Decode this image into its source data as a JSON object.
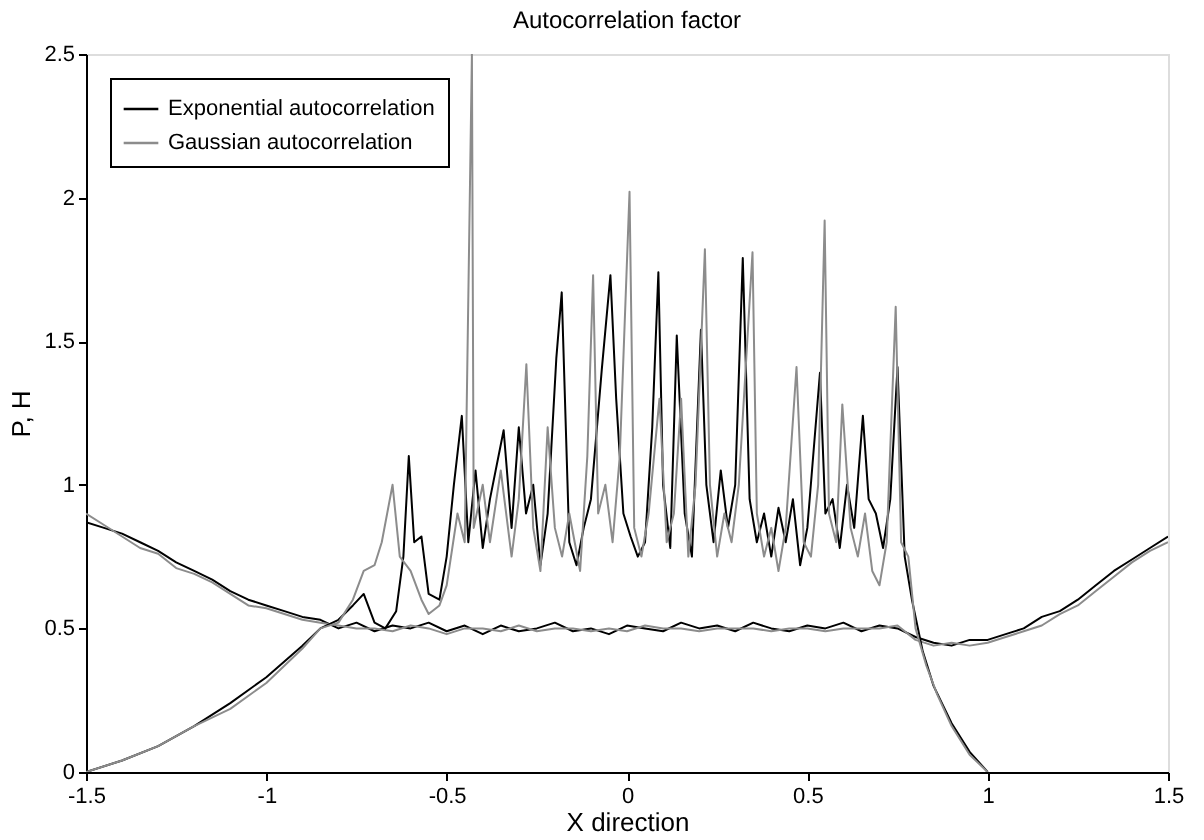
{
  "chart_data": {
    "type": "line",
    "title": "Autocorrelation factor",
    "xlabel": "X direction",
    "ylabel": "P, H",
    "xlim": [
      -1.5,
      1.5
    ],
    "xticks": [
      -1.5,
      -1,
      -0.5,
      0,
      0.5,
      1,
      1.5
    ],
    "ylim": [
      0,
      2.5
    ],
    "yticks": [
      0,
      0.5,
      1,
      1.5,
      2,
      2.5
    ],
    "grid": false,
    "legend": "top left",
    "marker": "none",
    "line_style": "solid",
    "series": [
      {
        "name": "Exponential autocorrelation",
        "color": "#000000",
        "x": [
          -1.5,
          -1.45,
          -1.4,
          -1.35,
          -1.3,
          -1.25,
          -1.2,
          -1.15,
          -1.1,
          -1.05,
          -1.0,
          -0.95,
          -0.9,
          -0.85,
          -0.8,
          -0.75,
          -0.7,
          -0.65,
          -0.6,
          -0.55,
          -0.5,
          -0.45,
          -0.4,
          -0.35,
          -0.3,
          -0.25,
          -0.2,
          -0.15,
          -0.1,
          -0.05,
          0,
          0.05,
          0.1,
          0.15,
          0.2,
          0.25,
          0.3,
          0.35,
          0.4,
          0.45,
          0.5,
          0.55,
          0.6,
          0.65,
          0.7,
          0.75,
          0.8,
          0.85,
          0.9,
          0.95,
          1.0,
          1.05,
          1.1,
          1.15,
          1.2,
          1.25,
          1.3,
          1.35,
          1.4,
          1.45,
          1.5
        ],
        "values": [
          0.87,
          0.85,
          0.83,
          0.8,
          0.77,
          0.73,
          0.7,
          0.67,
          0.63,
          0.6,
          0.58,
          0.56,
          0.54,
          0.53,
          0.5,
          0.52,
          0.49,
          0.51,
          0.5,
          0.52,
          0.49,
          0.51,
          0.48,
          0.51,
          0.49,
          0.5,
          0.52,
          0.49,
          0.5,
          0.48,
          0.51,
          0.5,
          0.49,
          0.52,
          0.5,
          0.51,
          0.49,
          0.52,
          0.5,
          0.49,
          0.51,
          0.5,
          0.52,
          0.49,
          0.51,
          0.5,
          0.47,
          0.45,
          0.44,
          0.46,
          0.46,
          0.48,
          0.5,
          0.54,
          0.56,
          0.6,
          0.65,
          0.7,
          0.74,
          0.78,
          0.82
        ]
      },
      {
        "name": "Gaussian autocorrelation",
        "color": "#8c8c8c",
        "x": [
          -1.5,
          -1.45,
          -1.4,
          -1.35,
          -1.3,
          -1.25,
          -1.2,
          -1.15,
          -1.1,
          -1.05,
          -1.0,
          -0.95,
          -0.9,
          -0.85,
          -0.8,
          -0.75,
          -0.7,
          -0.65,
          -0.6,
          -0.55,
          -0.5,
          -0.45,
          -0.4,
          -0.35,
          -0.3,
          -0.25,
          -0.2,
          -0.15,
          -0.1,
          -0.05,
          0,
          0.05,
          0.1,
          0.15,
          0.2,
          0.25,
          0.3,
          0.35,
          0.4,
          0.45,
          0.5,
          0.55,
          0.6,
          0.65,
          0.7,
          0.75,
          0.8,
          0.85,
          0.9,
          0.95,
          1.0,
          1.05,
          1.1,
          1.15,
          1.2,
          1.25,
          1.3,
          1.35,
          1.4,
          1.45,
          1.5
        ],
        "values": [
          0.9,
          0.86,
          0.82,
          0.78,
          0.76,
          0.71,
          0.69,
          0.66,
          0.62,
          0.58,
          0.57,
          0.55,
          0.53,
          0.52,
          0.51,
          0.5,
          0.5,
          0.49,
          0.51,
          0.5,
          0.48,
          0.5,
          0.5,
          0.49,
          0.51,
          0.49,
          0.5,
          0.5,
          0.49,
          0.5,
          0.49,
          0.51,
          0.5,
          0.5,
          0.49,
          0.5,
          0.5,
          0.5,
          0.49,
          0.5,
          0.5,
          0.49,
          0.5,
          0.5,
          0.5,
          0.51,
          0.46,
          0.44,
          0.45,
          0.44,
          0.45,
          0.47,
          0.49,
          0.51,
          0.55,
          0.58,
          0.63,
          0.68,
          0.73,
          0.77,
          0.8
        ]
      },
      {
        "color": "#000000",
        "x": [
          -1.5,
          -1.4,
          -1.3,
          -1.2,
          -1.1,
          -1.0,
          -0.9,
          -0.85,
          -0.8,
          -0.76,
          -0.73,
          -0.7,
          -0.67,
          -0.64,
          -0.62,
          -0.605,
          -0.59,
          -0.57,
          -0.55,
          -0.52,
          -0.5,
          -0.48,
          -0.458,
          -0.44,
          -0.42,
          -0.4,
          -0.38,
          -0.342,
          -0.32,
          -0.3,
          -0.28,
          -0.26,
          -0.24,
          -0.22,
          -0.196,
          -0.181,
          -0.16,
          -0.14,
          -0.12,
          -0.1,
          -0.07,
          -0.046,
          -0.03,
          -0.01,
          0.01,
          0.03,
          0.05,
          0.07,
          0.087,
          0.1,
          0.12,
          0.138,
          0.16,
          0.18,
          0.205,
          0.22,
          0.24,
          0.26,
          0.28,
          0.3,
          0.321,
          0.34,
          0.36,
          0.38,
          0.4,
          0.42,
          0.44,
          0.46,
          0.48,
          0.5,
          0.535,
          0.55,
          0.57,
          0.59,
          0.61,
          0.63,
          0.654,
          0.67,
          0.69,
          0.71,
          0.73,
          0.75,
          0.77,
          0.79,
          0.82,
          0.85,
          0.9,
          0.95,
          1.0
        ],
        "values": [
          0,
          0.04,
          0.09,
          0.16,
          0.24,
          0.33,
          0.44,
          0.5,
          0.53,
          0.58,
          0.62,
          0.52,
          0.5,
          0.56,
          0.75,
          1.1,
          0.8,
          0.82,
          0.62,
          0.6,
          0.75,
          1.0,
          1.24,
          0.8,
          1.05,
          0.78,
          0.95,
          1.19,
          0.85,
          1.2,
          0.9,
          1.0,
          0.72,
          0.9,
          1.44,
          1.67,
          0.8,
          0.72,
          0.85,
          0.95,
          1.4,
          1.73,
          1.3,
          0.9,
          0.82,
          0.75,
          0.8,
          1.2,
          1.74,
          1.0,
          0.78,
          1.52,
          0.9,
          0.75,
          1.54,
          1.0,
          0.8,
          1.05,
          0.85,
          1.0,
          1.79,
          0.95,
          0.8,
          0.9,
          0.75,
          0.92,
          0.8,
          0.95,
          0.72,
          0.85,
          1.39,
          0.9,
          0.95,
          0.78,
          1.0,
          0.85,
          1.24,
          0.95,
          0.9,
          0.78,
          0.95,
          1.41,
          0.75,
          0.6,
          0.42,
          0.3,
          0.17,
          0.07,
          0
        ]
      },
      {
        "color": "#8c8c8c",
        "x": [
          -1.5,
          -1.4,
          -1.3,
          -1.2,
          -1.1,
          -1.0,
          -0.9,
          -0.85,
          -0.8,
          -0.76,
          -0.73,
          -0.7,
          -0.68,
          -0.65,
          -0.63,
          -0.6,
          -0.57,
          -0.55,
          -0.52,
          -0.5,
          -0.47,
          -0.45,
          -0.43,
          -0.425,
          -0.4,
          -0.38,
          -0.35,
          -0.32,
          -0.3,
          -0.279,
          -0.26,
          -0.24,
          -0.22,
          -0.2,
          -0.18,
          -0.16,
          -0.13,
          -0.11,
          -0.094,
          -0.08,
          -0.06,
          -0.04,
          -0.02,
          0.007,
          0.02,
          0.04,
          0.06,
          0.09,
          0.11,
          0.13,
          0.15,
          0.17,
          0.19,
          0.216,
          0.23,
          0.25,
          0.27,
          0.29,
          0.31,
          0.348,
          0.36,
          0.38,
          0.4,
          0.42,
          0.44,
          0.47,
          0.49,
          0.51,
          0.53,
          0.548,
          0.56,
          0.58,
          0.597,
          0.62,
          0.64,
          0.66,
          0.68,
          0.7,
          0.72,
          0.745,
          0.76,
          0.78,
          0.8,
          0.83,
          0.86,
          0.9,
          0.95,
          1.0
        ],
        "values": [
          0,
          0.04,
          0.09,
          0.16,
          0.22,
          0.31,
          0.43,
          0.5,
          0.52,
          0.6,
          0.7,
          0.72,
          0.8,
          1.0,
          0.75,
          0.7,
          0.6,
          0.55,
          0.58,
          0.65,
          0.9,
          0.8,
          2.5,
          0.85,
          1.0,
          0.8,
          1.05,
          0.75,
          0.95,
          1.42,
          0.85,
          0.7,
          1.2,
          0.85,
          0.75,
          0.9,
          0.7,
          1.1,
          1.73,
          0.9,
          1.0,
          0.8,
          1.1,
          2.02,
          0.85,
          0.75,
          0.9,
          1.3,
          0.8,
          0.9,
          1.3,
          0.75,
          1.0,
          1.82,
          1.0,
          0.75,
          0.9,
          0.8,
          1.0,
          1.81,
          0.9,
          0.75,
          0.85,
          0.7,
          0.85,
          1.41,
          0.8,
          0.75,
          1.0,
          1.92,
          0.9,
          0.8,
          1.28,
          0.85,
          0.75,
          0.9,
          0.7,
          0.65,
          0.8,
          1.62,
          0.8,
          0.75,
          0.5,
          0.37,
          0.27,
          0.16,
          0.06,
          0
        ]
      }
    ]
  }
}
